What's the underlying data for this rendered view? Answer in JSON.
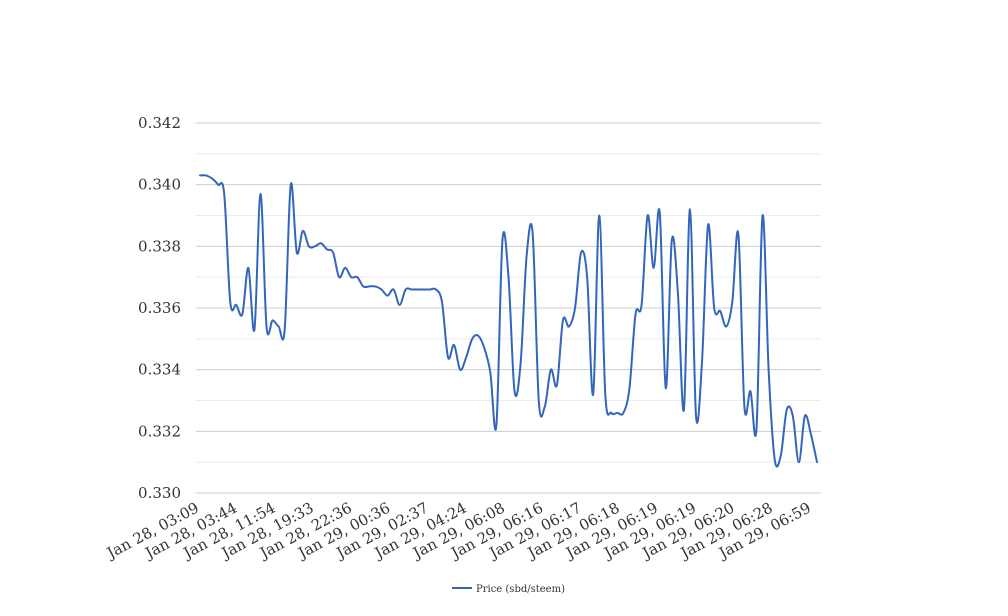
{
  "chart_data": {
    "type": "line",
    "title": "",
    "xlabel": "",
    "ylabel": "",
    "ylim": [
      0.33,
      0.342
    ],
    "y_ticks": [
      "0.330",
      "0.332",
      "0.334",
      "0.336",
      "0.338",
      "0.340",
      "0.342"
    ],
    "grid": true,
    "legend_position": "bottom",
    "x_tick_labels": [
      "Jan 28, 03:09",
      "Jan 28, 03:44",
      "Jan 28, 11:54",
      "Jan 28, 19:33",
      "Jan 28, 22:36",
      "Jan 29, 00:36",
      "Jan 29, 02:37",
      "Jan 29, 04:24",
      "Jan 29, 06:08",
      "Jan 29, 06:16",
      "Jan 29, 06:17",
      "Jan 29, 06:18",
      "Jan 29, 06:19",
      "Jan 29, 06:19",
      "Jan 29, 06:20",
      "Jan 29, 06:28",
      "Jan 29, 06:59"
    ],
    "series": [
      {
        "name": "Price (sbd/steem)",
        "color": "#3366bb",
        "values": [
          0.3403,
          0.3403,
          0.3402,
          0.34,
          0.3397,
          0.3362,
          0.3361,
          0.3358,
          0.3373,
          0.3353,
          0.3397,
          0.3354,
          0.3356,
          0.3354,
          0.3353,
          0.34,
          0.3378,
          0.3385,
          0.338,
          0.338,
          0.3381,
          0.3379,
          0.3378,
          0.337,
          0.3373,
          0.337,
          0.337,
          0.3367,
          0.3367,
          0.3367,
          0.3366,
          0.3364,
          0.3366,
          0.3361,
          0.3366,
          0.3366,
          0.3366,
          0.3366,
          0.3366,
          0.3366,
          0.3362,
          0.3344,
          0.3348,
          0.334,
          0.3344,
          0.335,
          0.3351,
          0.3347,
          0.3339,
          0.3322,
          0.3382,
          0.337,
          0.3333,
          0.3342,
          0.3377,
          0.3384,
          0.333,
          0.3328,
          0.334,
          0.3335,
          0.3356,
          0.3354,
          0.336,
          0.3378,
          0.337,
          0.3332,
          0.339,
          0.3332,
          0.3326,
          0.3326,
          0.3326,
          0.3334,
          0.3358,
          0.3361,
          0.339,
          0.3373,
          0.3391,
          0.3334,
          0.3382,
          0.3365,
          0.3327,
          0.3392,
          0.3325,
          0.3343,
          0.3387,
          0.336,
          0.3359,
          0.3354,
          0.3362,
          0.3384,
          0.3328,
          0.3333,
          0.3321,
          0.339,
          0.334,
          0.3311,
          0.3312,
          0.3327,
          0.3325,
          0.331,
          0.3325,
          0.3319,
          0.331
        ]
      }
    ]
  }
}
